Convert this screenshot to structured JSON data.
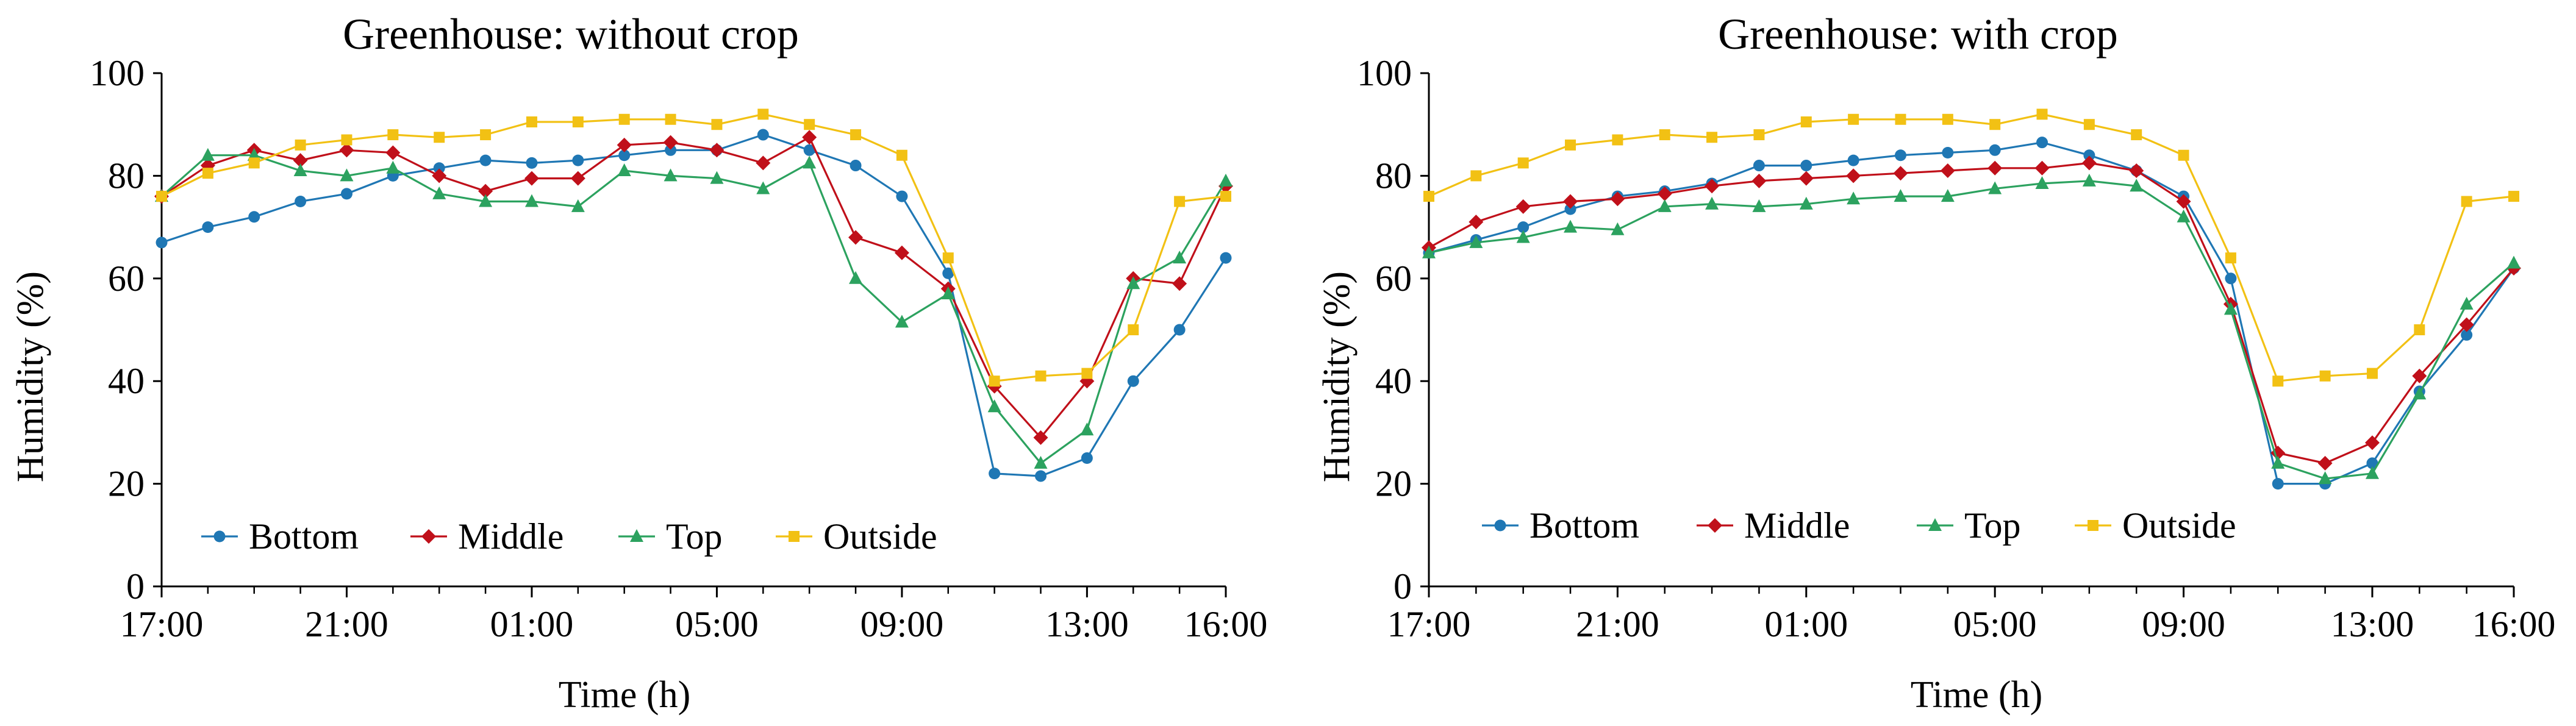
{
  "chart_data": [
    {
      "type": "line",
      "title": "Greenhouse:  without crop",
      "xlabel": "Time (h)",
      "ylabel": "Humidity (%)",
      "ylim": [
        0,
        100
      ],
      "yticks": [
        "0",
        "20",
        "40",
        "60",
        "80",
        "100"
      ],
      "xlim": [
        0,
        23
      ],
      "xticks": [
        {
          "x": 0,
          "label": "17:00"
        },
        {
          "x": 4,
          "label": "21:00"
        },
        {
          "x": 8,
          "label": "01:00"
        },
        {
          "x": 12,
          "label": "05:00"
        },
        {
          "x": 16,
          "label": "09:00"
        },
        {
          "x": 20,
          "label": "13:00"
        },
        {
          "x": 23,
          "label": "16:00"
        }
      ],
      "x": [
        0,
        1,
        2,
        3,
        4,
        5,
        6,
        7,
        8,
        9,
        10,
        11,
        12,
        13,
        14,
        15,
        16,
        17,
        18,
        19,
        20,
        21,
        22,
        23
      ],
      "legend_position": "bottom-inside",
      "series": [
        {
          "name": "Bottom",
          "color": "#1F77B4",
          "marker": "circle",
          "values": [
            67,
            70,
            72,
            75,
            76.5,
            80,
            81.5,
            83,
            82.5,
            83,
            84,
            85,
            85,
            88,
            85,
            82,
            76,
            61,
            22,
            21.5,
            25,
            40,
            50,
            64
          ]
        },
        {
          "name": "Middle",
          "color": "#C0101A",
          "marker": "diamond",
          "values": [
            76,
            82,
            85,
            83,
            85,
            84.5,
            80,
            77,
            79.5,
            79.5,
            86,
            86.5,
            85,
            82.5,
            87.5,
            68,
            65,
            58,
            39,
            29,
            40,
            60,
            59,
            78
          ]
        },
        {
          "name": "Top",
          "color": "#2CA25F",
          "marker": "triangle",
          "values": [
            76,
            84,
            84,
            81,
            80,
            81.5,
            76.5,
            75,
            75,
            74,
            81,
            80,
            79.5,
            77.5,
            82.5,
            60,
            51.5,
            57,
            35,
            24,
            30.5,
            59,
            64,
            79
          ]
        },
        {
          "name": "Outside",
          "color": "#F2C114",
          "marker": "square",
          "values": [
            76,
            80.5,
            82.5,
            86,
            87,
            88,
            87.5,
            88,
            90.5,
            90.5,
            91,
            91,
            90,
            92,
            90,
            88,
            84,
            64,
            40,
            41,
            41.5,
            50,
            75,
            76
          ]
        }
      ]
    },
    {
      "type": "line",
      "title": "Greenhouse:  with crop",
      "xlabel": "Time (h)",
      "ylabel": "Humidity (%)",
      "ylim": [
        0,
        100
      ],
      "yticks": [
        "0",
        "20",
        "40",
        "60",
        "80",
        "100"
      ],
      "xlim": [
        0,
        23
      ],
      "xticks": [
        {
          "x": 0,
          "label": "17:00"
        },
        {
          "x": 4,
          "label": "21:00"
        },
        {
          "x": 8,
          "label": "01:00"
        },
        {
          "x": 12,
          "label": "05:00"
        },
        {
          "x": 16,
          "label": "09:00"
        },
        {
          "x": 20,
          "label": "13:00"
        },
        {
          "x": 23,
          "label": "16:00"
        }
      ],
      "x": [
        0,
        1,
        2,
        3,
        4,
        5,
        6,
        7,
        8,
        9,
        10,
        11,
        12,
        13,
        14,
        15,
        16,
        17,
        18,
        19,
        20,
        21,
        22,
        23
      ],
      "legend_position": "bottom-inside",
      "series": [
        {
          "name": "Bottom",
          "color": "#1F77B4",
          "marker": "circle",
          "values": [
            65,
            67.5,
            70,
            73.5,
            76,
            77,
            78.5,
            82,
            82,
            83,
            84,
            84.5,
            85,
            86.5,
            84,
            81,
            76,
            60,
            20,
            20,
            24,
            38,
            49,
            62
          ]
        },
        {
          "name": "Middle",
          "color": "#C0101A",
          "marker": "diamond",
          "values": [
            66,
            71,
            74,
            75,
            75.5,
            76.5,
            78,
            79,
            79.5,
            80,
            80.5,
            81,
            81.5,
            81.5,
            82.5,
            81,
            75,
            55,
            26,
            24,
            28,
            41,
            51,
            62
          ]
        },
        {
          "name": "Top",
          "color": "#2CA25F",
          "marker": "triangle",
          "values": [
            65,
            67,
            68,
            70,
            69.5,
            74,
            74.5,
            74,
            74.5,
            75.5,
            76,
            76,
            77.5,
            78.5,
            79,
            78,
            72,
            54,
            24,
            21,
            22,
            37.5,
            55,
            63
          ]
        },
        {
          "name": "Outside",
          "color": "#F2C114",
          "marker": "square",
          "values": [
            76,
            80,
            82.5,
            86,
            87,
            88,
            87.5,
            88,
            90.5,
            91,
            91,
            91,
            90,
            92,
            90,
            88,
            84,
            64,
            40,
            41,
            41.5,
            50,
            75,
            76
          ]
        }
      ]
    }
  ]
}
